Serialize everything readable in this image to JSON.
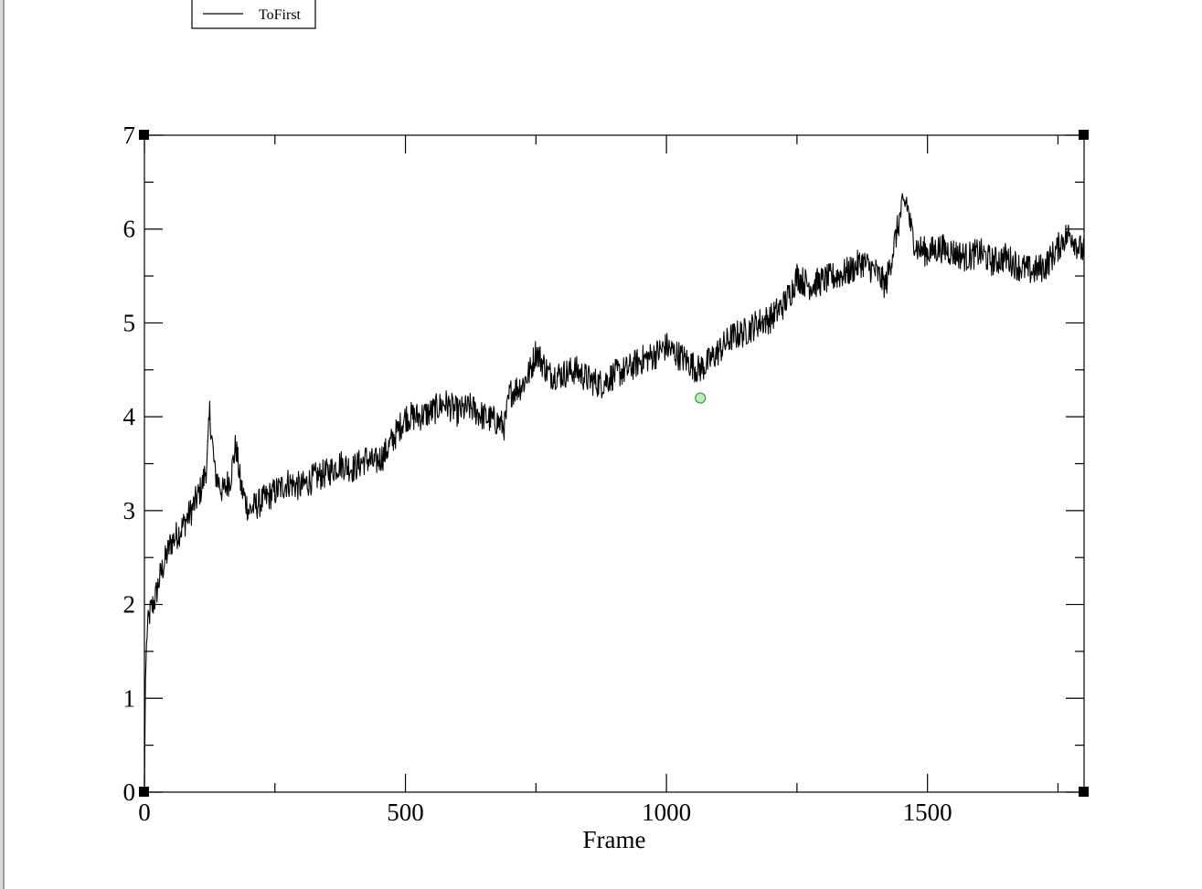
{
  "colors": {
    "series": "#000000",
    "marker_fill": "#b7efb7",
    "marker_stroke": "#2e8b2e",
    "left_border": "#9a9a9a"
  },
  "chart_data": {
    "type": "line",
    "title": "",
    "xlabel": "Frame",
    "ylabel": "",
    "xlim": [
      0,
      1800
    ],
    "ylim": [
      0,
      7
    ],
    "xticks": [
      0,
      500,
      1000,
      1500
    ],
    "yticks": [
      0,
      1,
      2,
      3,
      4,
      5,
      6,
      7
    ],
    "grid": false,
    "legend_position": "top-left",
    "series": [
      {
        "name": "ToFirst",
        "x": [
          0,
          2,
          5,
          10,
          20,
          30,
          50,
          70,
          90,
          110,
          120,
          125,
          135,
          150,
          165,
          175,
          185,
          200,
          225,
          250,
          275,
          300,
          325,
          350,
          375,
          400,
          425,
          440,
          460,
          480,
          500,
          525,
          550,
          575,
          600,
          625,
          650,
          675,
          690,
          700,
          725,
          740,
          750,
          775,
          800,
          825,
          850,
          875,
          900,
          925,
          950,
          975,
          1000,
          1010,
          1025,
          1050,
          1060,
          1075,
          1100,
          1125,
          1150,
          1175,
          1200,
          1225,
          1240,
          1250,
          1260,
          1275,
          1300,
          1325,
          1350,
          1375,
          1400,
          1420,
          1435,
          1450,
          1460,
          1470,
          1480,
          1500,
          1525,
          1550,
          1575,
          1600,
          1625,
          1650,
          1675,
          1700,
          1725,
          1750,
          1760,
          1775,
          1790,
          1800
        ],
        "y": [
          0,
          1.2,
          1.7,
          1.9,
          2.05,
          2.3,
          2.65,
          2.8,
          3.0,
          3.25,
          3.5,
          4.05,
          3.4,
          3.2,
          3.35,
          3.7,
          3.25,
          3.0,
          3.1,
          3.2,
          3.3,
          3.25,
          3.35,
          3.4,
          3.5,
          3.45,
          3.55,
          3.5,
          3.6,
          3.8,
          4.0,
          4.0,
          4.05,
          4.15,
          4.05,
          4.1,
          4.0,
          3.95,
          3.9,
          4.25,
          4.35,
          4.5,
          4.7,
          4.45,
          4.45,
          4.5,
          4.4,
          4.35,
          4.45,
          4.5,
          4.6,
          4.65,
          4.75,
          4.7,
          4.65,
          4.55,
          4.5,
          4.55,
          4.7,
          4.85,
          4.9,
          5.0,
          5.05,
          5.2,
          5.35,
          5.5,
          5.45,
          5.4,
          5.45,
          5.5,
          5.55,
          5.65,
          5.55,
          5.4,
          5.8,
          6.2,
          6.3,
          5.95,
          5.8,
          5.75,
          5.8,
          5.75,
          5.7,
          5.75,
          5.65,
          5.7,
          5.6,
          5.55,
          5.6,
          5.8,
          5.9,
          5.95,
          5.8,
          5.75
        ]
      }
    ],
    "annotations": [
      {
        "type": "point-marker",
        "x": 1065,
        "y": 4.2
      }
    ]
  }
}
